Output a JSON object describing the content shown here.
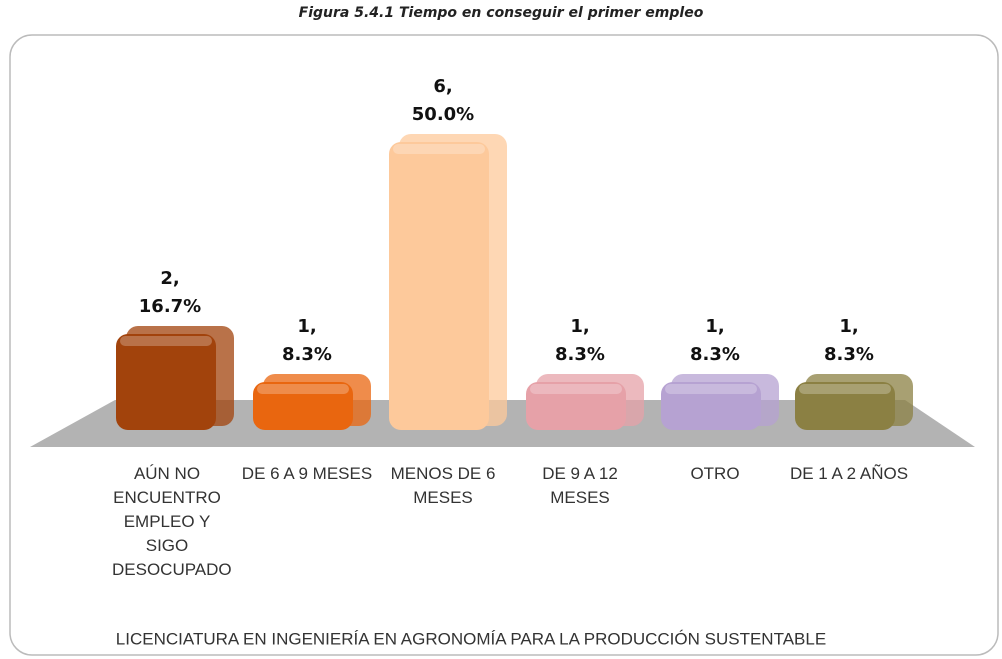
{
  "chart_data": {
    "type": "bar3d",
    "title": "Figura 5.4.1 Tiempo en conseguir el primer empleo",
    "subtitle": "LICENCIATURA EN INGENIERÍA EN AGRONOMÍA PARA LA PRODUCCIÓN SUSTENTABLE",
    "categories": [
      "AÚN NO ENCUENTRO EMPLEO Y SIGO DESOCUPADO",
      "DE 6 A 9 MESES",
      "MENOS DE 6 MESES",
      "DE 9 A 12 MESES",
      "OTRO",
      "DE 1 A 2 AÑOS"
    ],
    "values": [
      2,
      1,
      6,
      1,
      1,
      1
    ],
    "value_labels": [
      [
        "2,",
        "16.7%"
      ],
      [
        "1,",
        "8.3%"
      ],
      [
        "6,",
        "50.0%"
      ],
      [
        "1,",
        "8.3%"
      ],
      [
        "1,",
        "8.3%"
      ],
      [
        "1,",
        "8.3%"
      ]
    ],
    "colors": [
      "#a2430c",
      "#e9660f",
      "#fdc99b",
      "#e6a1a8",
      "#b6a2d2",
      "#8b8043"
    ]
  }
}
